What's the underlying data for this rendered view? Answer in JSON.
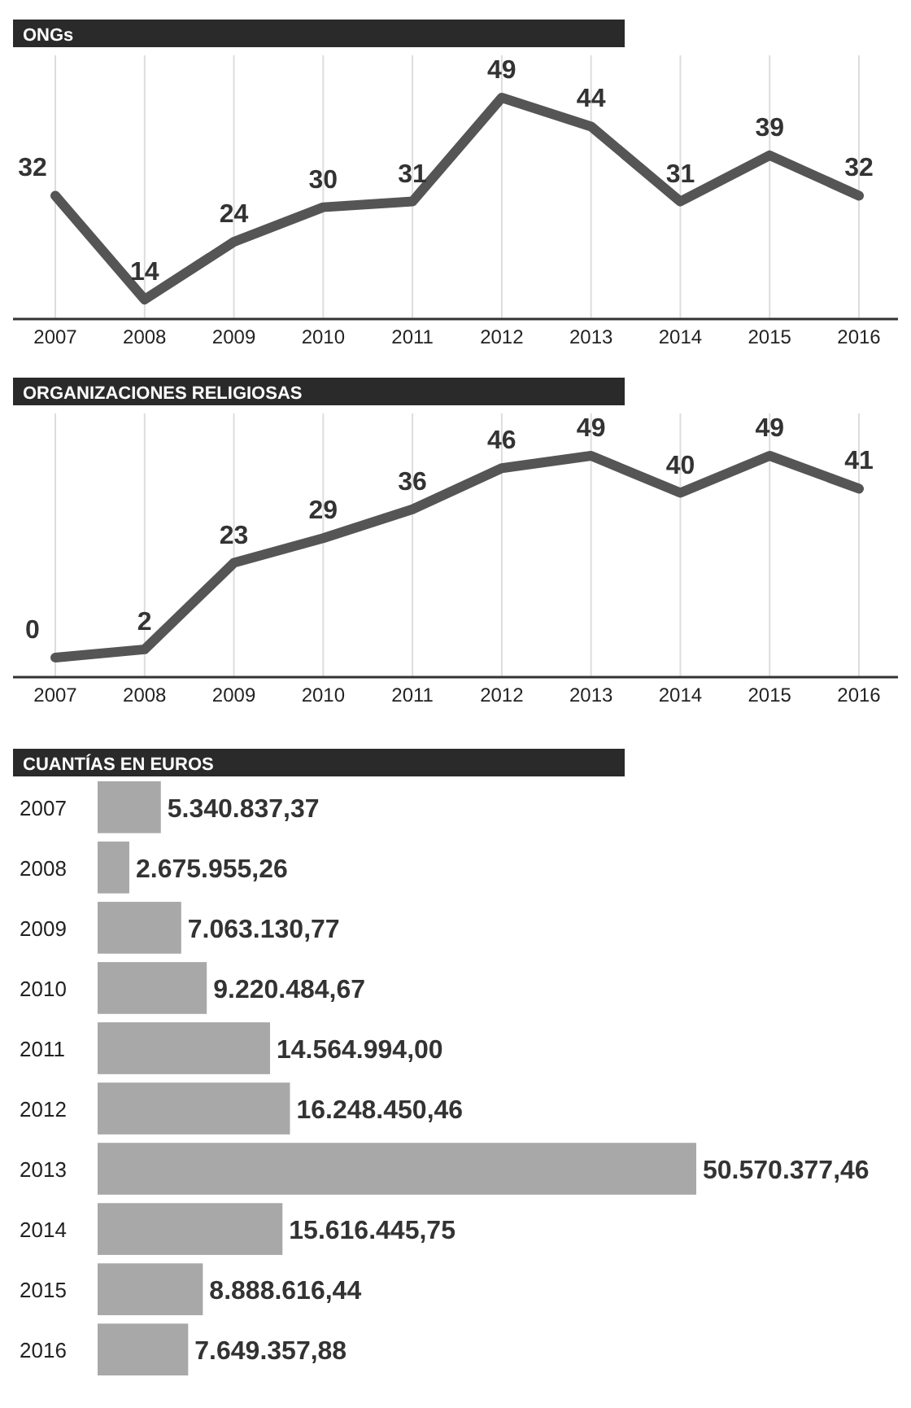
{
  "chart_data": [
    {
      "type": "line",
      "title": "ONGs",
      "categories": [
        "2007",
        "2008",
        "2009",
        "2010",
        "2011",
        "2012",
        "2013",
        "2014",
        "2015",
        "2016"
      ],
      "values": [
        32,
        14,
        24,
        30,
        31,
        49,
        44,
        31,
        39,
        32
      ],
      "color": "#555555",
      "data_labels": true,
      "grid": "x"
    },
    {
      "type": "line",
      "title": "ORGANIZACIONES RELIGIOSAS",
      "categories": [
        "2007",
        "2008",
        "2009",
        "2010",
        "2011",
        "2012",
        "2013",
        "2014",
        "2015",
        "2016"
      ],
      "values": [
        0,
        2,
        23,
        29,
        36,
        46,
        49,
        40,
        49,
        41
      ],
      "color": "#555555",
      "data_labels": true,
      "grid": "x"
    },
    {
      "type": "bar",
      "orientation": "horizontal",
      "title": "CUANTÍAS EN EUROS",
      "categories": [
        "2007",
        "2008",
        "2009",
        "2010",
        "2011",
        "2012",
        "2013",
        "2014",
        "2015",
        "2016"
      ],
      "values": [
        5340837.37,
        2675955.26,
        7063130.77,
        9220484.67,
        14564994.0,
        16248450.46,
        50570377.46,
        15616445.75,
        8888616.44,
        7649357.88
      ],
      "value_labels": [
        "5.340.837,37",
        "2.675.955,26",
        "7.063.130,77",
        "9.220.484,67",
        "14.564.994,00",
        "16.248.450,46",
        "50.570.377,46",
        "15.616.445,75",
        "8.888.616,44",
        "7.649.357,88"
      ],
      "color": "#a8a8a8"
    }
  ]
}
